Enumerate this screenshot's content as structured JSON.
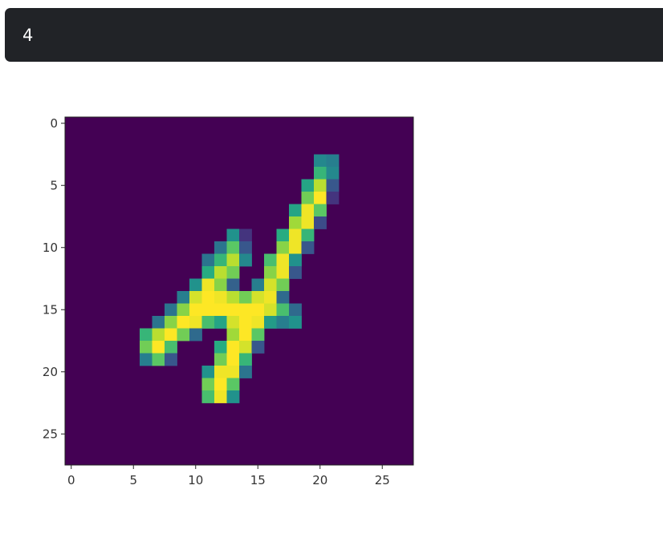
{
  "output": {
    "text": "4"
  },
  "chart_data": {
    "type": "heatmap",
    "title": "",
    "xlabel": "",
    "ylabel": "",
    "shape": [
      28,
      28
    ],
    "xlim": [
      -0.5,
      27.5
    ],
    "ylim": [
      27.5,
      -0.5
    ],
    "x_ticks": [
      "0",
      "5",
      "10",
      "15",
      "20",
      "25"
    ],
    "y_ticks": [
      "0",
      "5",
      "10",
      "15",
      "20",
      "25"
    ],
    "colormap": "viridis",
    "value_range": [
      0,
      255
    ],
    "background_value": 0,
    "pixels": [
      [
        3,
        20,
        120
      ],
      [
        3,
        21,
        110
      ],
      [
        4,
        20,
        170
      ],
      [
        4,
        21,
        120
      ],
      [
        5,
        19,
        150
      ],
      [
        5,
        20,
        230
      ],
      [
        5,
        21,
        70
      ],
      [
        6,
        19,
        200
      ],
      [
        6,
        20,
        255
      ],
      [
        6,
        21,
        40
      ],
      [
        7,
        18,
        150
      ],
      [
        7,
        19,
        250
      ],
      [
        7,
        20,
        190
      ],
      [
        8,
        18,
        220
      ],
      [
        8,
        19,
        250
      ],
      [
        8,
        20,
        60
      ],
      [
        9,
        13,
        130
      ],
      [
        9,
        14,
        40
      ],
      [
        9,
        17,
        160
      ],
      [
        9,
        18,
        250
      ],
      [
        9,
        19,
        170
      ],
      [
        10,
        12,
        100
      ],
      [
        10,
        13,
        190
      ],
      [
        10,
        14,
        70
      ],
      [
        10,
        17,
        210
      ],
      [
        10,
        18,
        250
      ],
      [
        10,
        19,
        70
      ],
      [
        11,
        11,
        100
      ],
      [
        11,
        12,
        170
      ],
      [
        11,
        13,
        230
      ],
      [
        11,
        14,
        120
      ],
      [
        11,
        16,
        180
      ],
      [
        11,
        17,
        250
      ],
      [
        11,
        18,
        130
      ],
      [
        12,
        11,
        160
      ],
      [
        12,
        12,
        230
      ],
      [
        12,
        13,
        200
      ],
      [
        12,
        16,
        210
      ],
      [
        12,
        17,
        250
      ],
      [
        12,
        18,
        70
      ],
      [
        13,
        10,
        130
      ],
      [
        13,
        11,
        250
      ],
      [
        13,
        12,
        210
      ],
      [
        13,
        13,
        80
      ],
      [
        13,
        15,
        110
      ],
      [
        13,
        16,
        240
      ],
      [
        13,
        17,
        200
      ],
      [
        14,
        9,
        110
      ],
      [
        14,
        10,
        240
      ],
      [
        14,
        11,
        255
      ],
      [
        14,
        12,
        250
      ],
      [
        14,
        13,
        230
      ],
      [
        14,
        14,
        200
      ],
      [
        14,
        15,
        240
      ],
      [
        14,
        16,
        250
      ],
      [
        14,
        17,
        90
      ],
      [
        15,
        8,
        100
      ],
      [
        15,
        9,
        210
      ],
      [
        15,
        10,
        255
      ],
      [
        15,
        11,
        255
      ],
      [
        15,
        12,
        255
      ],
      [
        15,
        13,
        255
      ],
      [
        15,
        14,
        255
      ],
      [
        15,
        15,
        255
      ],
      [
        15,
        16,
        240
      ],
      [
        15,
        17,
        180
      ],
      [
        15,
        18,
        90
      ],
      [
        16,
        7,
        100
      ],
      [
        16,
        8,
        210
      ],
      [
        16,
        9,
        255
      ],
      [
        16,
        10,
        250
      ],
      [
        16,
        11,
        180
      ],
      [
        16,
        12,
        150
      ],
      [
        16,
        13,
        240
      ],
      [
        16,
        14,
        255
      ],
      [
        16,
        15,
        250
      ],
      [
        16,
        16,
        140
      ],
      [
        16,
        17,
        110
      ],
      [
        16,
        18,
        130
      ],
      [
        17,
        6,
        170
      ],
      [
        17,
        7,
        230
      ],
      [
        17,
        8,
        255
      ],
      [
        17,
        9,
        200
      ],
      [
        17,
        10,
        90
      ],
      [
        17,
        13,
        220
      ],
      [
        17,
        14,
        255
      ],
      [
        17,
        15,
        190
      ],
      [
        18,
        6,
        200
      ],
      [
        18,
        7,
        255
      ],
      [
        18,
        8,
        180
      ],
      [
        18,
        12,
        160
      ],
      [
        18,
        13,
        255
      ],
      [
        18,
        14,
        240
      ],
      [
        18,
        15,
        70
      ],
      [
        19,
        6,
        110
      ],
      [
        19,
        7,
        190
      ],
      [
        19,
        8,
        70
      ],
      [
        19,
        12,
        200
      ],
      [
        19,
        13,
        255
      ],
      [
        19,
        14,
        170
      ],
      [
        20,
        11,
        130
      ],
      [
        20,
        12,
        250
      ],
      [
        20,
        13,
        250
      ],
      [
        20,
        14,
        100
      ],
      [
        21,
        11,
        200
      ],
      [
        21,
        12,
        255
      ],
      [
        21,
        13,
        190
      ],
      [
        22,
        11,
        180
      ],
      [
        22,
        12,
        250
      ],
      [
        22,
        13,
        130
      ]
    ]
  }
}
